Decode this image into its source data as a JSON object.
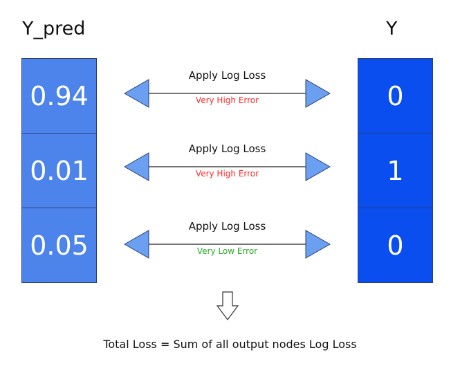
{
  "headings": {
    "prediction": "Y_pred",
    "target": "Y"
  },
  "rows": [
    {
      "y_pred": "0.94",
      "y": "0",
      "action": "Apply Log Loss",
      "error": "Very High Error",
      "error_color": "#ff2a2a"
    },
    {
      "y_pred": "0.01",
      "y": "1",
      "action": "Apply Log Loss",
      "error": "Very High Error",
      "error_color": "#ff2a2a"
    },
    {
      "y_pred": "0.05",
      "y": "0",
      "action": "Apply Log Loss",
      "error": "Very Low Error",
      "error_color": "#22aa22"
    }
  ],
  "footer": "Total Loss = Sum of all output nodes Log Loss",
  "colors": {
    "pred_fill": "#4d84ec",
    "target_fill": "#0a4ef0",
    "arrow_head_fill": "#6a9ff2"
  }
}
